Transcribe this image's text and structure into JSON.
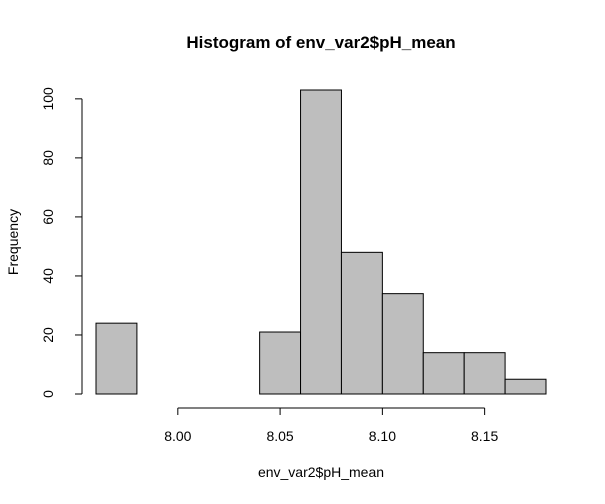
{
  "chart_data": {
    "type": "bar",
    "title": "Histogram of env_var2$pH_mean",
    "xlabel": "env_var2$pH_mean",
    "ylabel": "Frequency",
    "bar_color": "#bebebe",
    "bins": [
      {
        "start": 7.96,
        "end": 7.98,
        "count": 24
      },
      {
        "start": 7.98,
        "end": 8.0,
        "count": 0
      },
      {
        "start": 8.0,
        "end": 8.02,
        "count": 0
      },
      {
        "start": 8.02,
        "end": 8.04,
        "count": 0
      },
      {
        "start": 8.04,
        "end": 8.06,
        "count": 21
      },
      {
        "start": 8.06,
        "end": 8.08,
        "count": 103
      },
      {
        "start": 8.08,
        "end": 8.1,
        "count": 48
      },
      {
        "start": 8.1,
        "end": 8.12,
        "count": 34
      },
      {
        "start": 8.12,
        "end": 8.14,
        "count": 14
      },
      {
        "start": 8.14,
        "end": 8.16,
        "count": 14
      },
      {
        "start": 8.16,
        "end": 8.18,
        "count": 5
      }
    ],
    "xticks": [
      "8.00",
      "8.05",
      "8.10",
      "8.15"
    ],
    "yticks": [
      "0",
      "20",
      "40",
      "60",
      "80",
      "100"
    ],
    "xlim": [
      7.96,
      8.18
    ],
    "ylim": [
      0,
      103
    ]
  }
}
